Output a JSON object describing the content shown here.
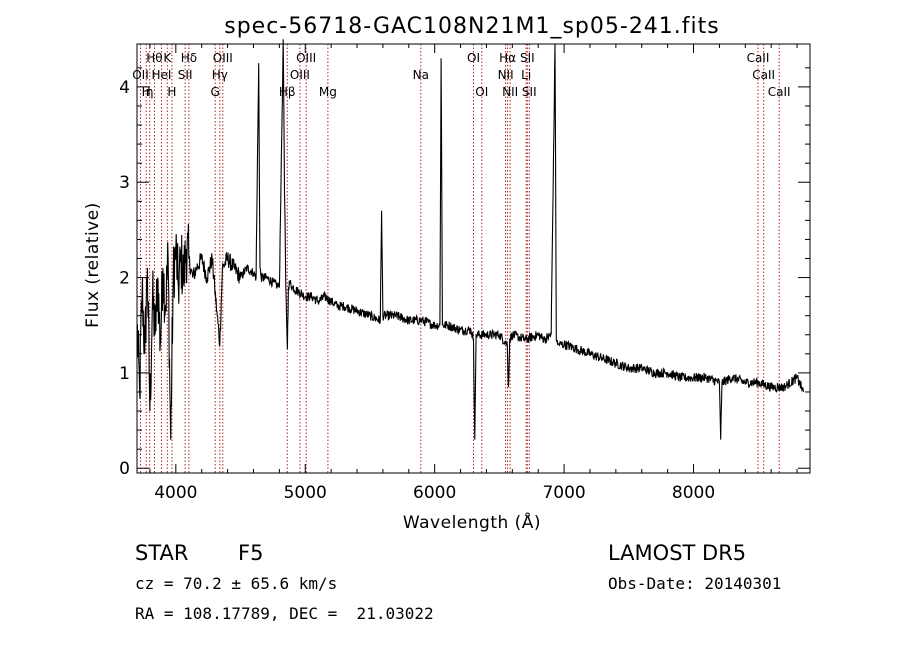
{
  "chart_data": {
    "type": "line",
    "title": "spec-56718-GAC108N21M1_sp05-241.fits",
    "xlabel": "Wavelength (Å)",
    "ylabel": "Flux (relative)",
    "xlim": [
      3700,
      8900
    ],
    "ylim": [
      -0.05,
      4.45
    ],
    "x_ticks": [
      4000,
      5000,
      6000,
      7000,
      8000
    ],
    "y_ticks": [
      0,
      1,
      2,
      3,
      4
    ],
    "grid": false,
    "series": [
      {
        "x": [
          3700,
          3720,
          3740,
          3760,
          3780,
          3800,
          3820,
          3840,
          3860,
          3880,
          3900,
          3920,
          3940,
          3960,
          3980,
          4000,
          4020,
          4040,
          4060,
          4080,
          4100,
          4130,
          4160,
          4200,
          4240,
          4280,
          4300,
          4320,
          4340,
          4360,
          4400,
          4450,
          4500,
          4550,
          4600,
          4620,
          4640,
          4650,
          4660,
          4700,
          4750,
          4800,
          4830,
          4840,
          4850,
          4862,
          4870,
          4880,
          4900,
          4950,
          5000,
          5050,
          5100,
          5150,
          5200,
          5250,
          5300,
          5400,
          5500,
          5580,
          5590,
          5600,
          5700,
          5800,
          5900,
          6000,
          6040,
          6050,
          6060,
          6100,
          6200,
          6280,
          6300,
          6310,
          6320,
          6400,
          6500,
          6560,
          6570,
          6580,
          6600,
          6700,
          6800,
          6850,
          6900,
          6930,
          6940,
          6950,
          6960,
          7000,
          7100,
          7200,
          7300,
          7400,
          7500,
          7600,
          7700,
          7800,
          7900,
          8000,
          8100,
          8200,
          8210,
          8220,
          8300,
          8400,
          8500,
          8600,
          8700,
          8800,
          8850
        ],
        "y": [
          1.5,
          0.8,
          1.9,
          1.2,
          2.1,
          0.6,
          1.8,
          1.4,
          2.0,
          1.3,
          2.1,
          1.7,
          2.2,
          0.3,
          2.0,
          2.3,
          1.9,
          2.2,
          2.0,
          2.3,
          2.2,
          2.0,
          2.1,
          2.2,
          2.0,
          2.2,
          1.9,
          1.6,
          1.3,
          2.1,
          2.2,
          2.1,
          2.0,
          2.1,
          2.05,
          2.0,
          4.25,
          2.1,
          2.0,
          2.0,
          1.95,
          1.9,
          4.5,
          2.9,
          1.9,
          1.25,
          1.9,
          1.95,
          1.9,
          1.85,
          1.8,
          1.8,
          1.75,
          1.8,
          1.75,
          1.7,
          1.7,
          1.65,
          1.6,
          1.55,
          2.7,
          1.6,
          1.6,
          1.55,
          1.55,
          1.5,
          1.5,
          4.3,
          1.5,
          1.5,
          1.45,
          1.45,
          1.35,
          0.3,
          1.4,
          1.4,
          1.4,
          1.3,
          0.85,
          1.35,
          1.4,
          1.35,
          1.4,
          1.35,
          1.4,
          4.45,
          1.35,
          1.3,
          1.3,
          1.3,
          1.25,
          1.2,
          1.15,
          1.1,
          1.05,
          1.05,
          1.0,
          1.0,
          0.95,
          0.95,
          0.95,
          0.9,
          0.3,
          0.9,
          0.95,
          0.9,
          0.9,
          0.85,
          0.85,
          0.95,
          0.8
        ]
      }
    ],
    "line_color": "#000000",
    "marker_line_color": "#b22222",
    "spectral_lines": [
      {
        "x": 3727,
        "label": "OII",
        "row": 1
      },
      {
        "x": 3771,
        "label": "H",
        "row": 2
      },
      {
        "x": 3798,
        "label": "η",
        "row": 2
      },
      {
        "x": 3835,
        "label": "Hθ",
        "row": 0
      },
      {
        "x": 3889,
        "label": "HeI",
        "row": 1
      },
      {
        "x": 3934,
        "label": "K",
        "row": 0
      },
      {
        "x": 3970,
        "label": "H",
        "row": 2
      },
      {
        "x": 4101,
        "label": "Hδ",
        "row": 0
      },
      {
        "x": 4072,
        "label": "SII",
        "row": 1
      },
      {
        "x": 4304,
        "label": "G",
        "row": 2
      },
      {
        "x": 4340,
        "label": "Hγ",
        "row": 1
      },
      {
        "x": 4363,
        "label": "OIII",
        "row": 0
      },
      {
        "x": 4861,
        "label": "Hβ",
        "row": 2
      },
      {
        "x": 4959,
        "label": "OIII",
        "row": 1
      },
      {
        "x": 5007,
        "label": "OIII",
        "row": 0
      },
      {
        "x": 5175,
        "label": "Mg",
        "row": 2
      },
      {
        "x": 5893,
        "label": "Na",
        "row": 1
      },
      {
        "x": 6300,
        "label": "OI",
        "row": 0
      },
      {
        "x": 6364,
        "label": "OI",
        "row": 2
      },
      {
        "x": 6548,
        "label": "NII",
        "row": 1
      },
      {
        "x": 6563,
        "label": "Hα",
        "row": 0
      },
      {
        "x": 6583,
        "label": "NII",
        "row": 2
      },
      {
        "x": 6707,
        "label": "Li",
        "row": 1
      },
      {
        "x": 6716,
        "label": "SII",
        "row": 0
      },
      {
        "x": 6731,
        "label": "SII",
        "row": 2
      },
      {
        "x": 8498,
        "label": "CaII",
        "row": 0
      },
      {
        "x": 8542,
        "label": "CaII",
        "row": 1
      },
      {
        "x": 8662,
        "label": "CaII",
        "row": 2
      }
    ]
  },
  "info": {
    "class_label": "STAR",
    "subclass": "F5",
    "survey": "LAMOST DR5",
    "cz": "cz = 70.2 ± 65.6 km/s",
    "obs_date": "Obs-Date: 20140301",
    "radec": "RA = 108.17789, DEC =  21.03022"
  }
}
